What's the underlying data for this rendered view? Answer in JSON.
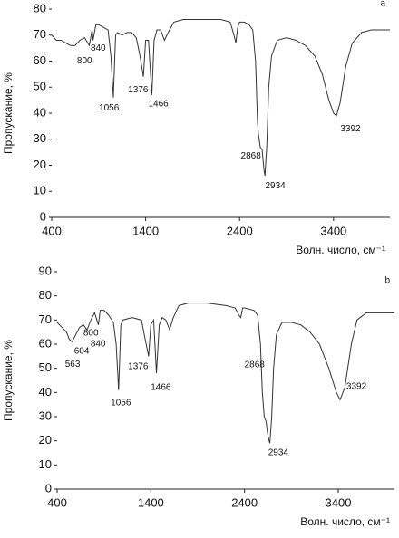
{
  "chart_data": [
    {
      "type": "line",
      "panel": "a",
      "xlabel": "Волн. число, см⁻¹",
      "ylabel": "Пропускание, %",
      "xlim": [
        400,
        4000
      ],
      "xticks": [
        400,
        1400,
        2400,
        3400
      ],
      "ylim": [
        0,
        80
      ],
      "yticks": [
        0,
        10,
        20,
        30,
        40,
        50,
        60,
        70,
        80
      ],
      "series": [
        {
          "color": "#333333",
          "x": [
            400,
            450,
            500,
            550,
            600,
            650,
            700,
            750,
            800,
            830,
            840,
            870,
            900,
            950,
            1000,
            1030,
            1056,
            1080,
            1100,
            1150,
            1200,
            1250,
            1300,
            1340,
            1376,
            1400,
            1430,
            1466,
            1490,
            1520,
            1560,
            1600,
            1640,
            1700,
            1800,
            2000,
            2200,
            2300,
            2340,
            2360,
            2380,
            2400,
            2450,
            2500,
            2540,
            2570,
            2590,
            2600,
            2620,
            2640,
            2660,
            2670,
            2690,
            2710,
            2740,
            2800,
            2900,
            3000,
            3100,
            3200,
            3280,
            3350,
            3400,
            3430,
            3470,
            3530,
            3600,
            3700,
            3800,
            4000
          ],
          "values": [
            70,
            68,
            68,
            67,
            66,
            66,
            68,
            69,
            66,
            72,
            68,
            74,
            74,
            73,
            72,
            62,
            46,
            70,
            71,
            70,
            71,
            71,
            69,
            62,
            54,
            68,
            68,
            47,
            68,
            72,
            72,
            68,
            71,
            75,
            76,
            76,
            76,
            75,
            70,
            67,
            73,
            75,
            75,
            74,
            72,
            60,
            37,
            32,
            27,
            26,
            18,
            16,
            28,
            50,
            62,
            68,
            69,
            68,
            66,
            62,
            55,
            45,
            40,
            39,
            44,
            58,
            67,
            71,
            72,
            72
          ]
        }
      ],
      "annotations": [
        {
          "text": "800",
          "x": 750,
          "y": 60
        },
        {
          "text": "840",
          "x": 895,
          "y": 65
        },
        {
          "text": "1056",
          "x": 1010,
          "y": 42
        },
        {
          "text": "1376",
          "x": 1320,
          "y": 49
        },
        {
          "text": "1466",
          "x": 1535,
          "y": 43.5
        },
        {
          "text": "2868",
          "x": 2520,
          "y": 23.5
        },
        {
          "text": "2934",
          "x": 2780,
          "y": 12
        },
        {
          "text": "3392",
          "x": 3580,
          "y": 34
        }
      ]
    },
    {
      "type": "line",
      "panel": "b",
      "xlabel": "Волн. число, см⁻¹",
      "ylabel": "Пропускание, %",
      "xlim": [
        400,
        4000
      ],
      "xticks": [
        400,
        1400,
        2400,
        3400
      ],
      "ylim": [
        0,
        90
      ],
      "yticks": [
        0,
        10,
        20,
        30,
        40,
        50,
        60,
        70,
        80,
        90
      ],
      "series": [
        {
          "color": "#333333",
          "x": [
            400,
            450,
            500,
            530,
            560,
            600,
            640,
            680,
            720,
            760,
            800,
            840,
            860,
            900,
            950,
            1000,
            1030,
            1056,
            1080,
            1100,
            1200,
            1300,
            1340,
            1376,
            1400,
            1430,
            1460,
            1490,
            1520,
            1560,
            1600,
            1640,
            1700,
            1800,
            2000,
            2200,
            2300,
            2340,
            2360,
            2380,
            2400,
            2500,
            2540,
            2570,
            2590,
            2610,
            2630,
            2650,
            2670,
            2690,
            2710,
            2740,
            2800,
            2900,
            3000,
            3100,
            3200,
            3300,
            3380,
            3420,
            3470,
            3540,
            3600,
            3700,
            3800,
            4000
          ],
          "values": [
            69,
            67,
            65,
            62,
            61,
            64,
            67,
            68,
            66,
            70,
            73,
            68,
            74,
            74,
            72,
            69,
            60,
            41,
            68,
            70,
            71,
            70,
            62,
            55,
            68,
            70,
            48,
            68,
            71,
            70,
            66,
            71,
            76,
            77,
            77,
            76,
            75,
            72,
            71,
            75,
            75,
            74,
            72,
            60,
            40,
            30,
            28,
            22,
            19,
            30,
            50,
            64,
            69,
            69,
            68,
            65,
            60,
            50,
            40,
            37,
            42,
            60,
            70,
            73,
            73,
            73
          ]
        }
      ],
      "annotations": [
        {
          "text": "563",
          "x": 565,
          "y": 51.7
        },
        {
          "text": "604",
          "x": 662,
          "y": 57
        },
        {
          "text": "800",
          "x": 760,
          "y": 64.5
        },
        {
          "text": "840",
          "x": 837,
          "y": 60
        },
        {
          "text": "1056",
          "x": 1080,
          "y": 35.6
        },
        {
          "text": "1376",
          "x": 1264,
          "y": 50.6
        },
        {
          "text": "1466",
          "x": 1507,
          "y": 42
        },
        {
          "text": "2868",
          "x": 2507,
          "y": 51.4
        },
        {
          "text": "2934",
          "x": 2760,
          "y": 15
        },
        {
          "text": "3392",
          "x": 3594,
          "y": 42.4
        }
      ]
    }
  ]
}
